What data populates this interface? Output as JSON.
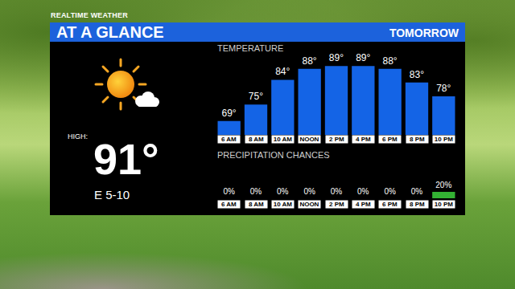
{
  "header": {
    "brand": "REALTIME WEATHER",
    "title": "AT A GLANCE",
    "period": "TOMORROW"
  },
  "summary": {
    "high_label": "HIGH:",
    "high": "91°",
    "wind": "E 5-10"
  },
  "chart_data": [
    {
      "type": "bar",
      "title": "TEMPERATURE",
      "categories": [
        "6 AM",
        "8 AM",
        "10 AM",
        "NOON",
        "2 PM",
        "4 PM",
        "6 PM",
        "8 PM",
        "10 PM"
      ],
      "values": [
        69,
        75,
        84,
        88,
        89,
        89,
        88,
        83,
        78
      ],
      "value_labels": [
        "69°",
        "75°",
        "84°",
        "88°",
        "89°",
        "89°",
        "88°",
        "83°",
        "78°"
      ],
      "color": "#1464e6",
      "ylim": [
        64,
        92
      ],
      "data_labels": true,
      "tick_labels": "x"
    },
    {
      "type": "bar",
      "title": "PRECIPITATION CHANCES",
      "categories": [
        "6 AM",
        "8 AM",
        "10 AM",
        "NOON",
        "2 PM",
        "4 PM",
        "6 PM",
        "8 PM",
        "10 PM"
      ],
      "values": [
        0,
        0,
        0,
        0,
        0,
        0,
        0,
        0,
        20
      ],
      "value_labels": [
        "0%",
        "0%",
        "0%",
        "0%",
        "0%",
        "0%",
        "0%",
        "0%",
        "20%"
      ],
      "color": "#33b233",
      "ylim": [
        0,
        20
      ],
      "data_labels": true,
      "tick_labels": "x"
    }
  ]
}
